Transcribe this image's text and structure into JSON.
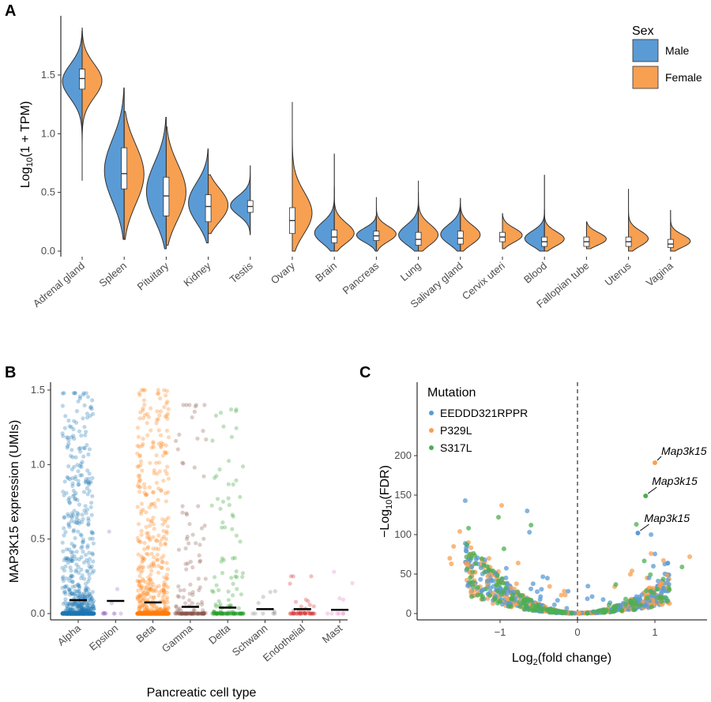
{
  "panels": {
    "a": "A",
    "b": "B",
    "c": "C"
  },
  "chart_data": [
    {
      "type": "violin",
      "panel": "A",
      "ylabel": "Log10(1 + TPM)",
      "ylabel_parts": {
        "pre": "Log",
        "sub": "10",
        "post": "(1 + TPM)"
      },
      "ylim": [
        0,
        1.9
      ],
      "yticks": [
        0.0,
        0.5,
        1.0,
        1.5
      ],
      "ytick_labels": [
        "0.0",
        "0.5",
        "1.0",
        "1.5"
      ],
      "legend": {
        "title": "Sex",
        "entries": [
          {
            "name": "Male",
            "color": "#5B9BD5"
          },
          {
            "name": "Female",
            "color": "#F7A052"
          }
        ]
      },
      "categories": [
        {
          "name": "Adrenal gland",
          "male": {
            "min": 0.6,
            "max": 1.88,
            "median": 1.47,
            "q1": 1.38,
            "q3": 1.55
          },
          "female": {
            "min": 0.72,
            "max": 1.9,
            "median": 1.47,
            "q1": 1.38,
            "q3": 1.55
          }
        },
        {
          "name": "Spleen",
          "male": {
            "min": 0.1,
            "max": 1.39,
            "median": 0.66,
            "q1": 0.53,
            "q3": 0.88
          },
          "female": {
            "min": 0.1,
            "max": 1.19,
            "median": 0.66,
            "q1": 0.53,
            "q3": 0.88
          }
        },
        {
          "name": "Pituitary",
          "male": {
            "min": 0.02,
            "max": 1.14,
            "median": 0.47,
            "q1": 0.3,
            "q3": 0.63
          },
          "female": {
            "min": 0.05,
            "max": 1.06,
            "median": 0.47,
            "q1": 0.3,
            "q3": 0.63
          }
        },
        {
          "name": "Kidney",
          "male": {
            "min": 0.07,
            "max": 0.87,
            "median": 0.38,
            "q1": 0.25,
            "q3": 0.48
          },
          "female": {
            "min": 0.15,
            "max": 0.65,
            "median": 0.38,
            "q1": 0.25,
            "q3": 0.48
          }
        },
        {
          "name": "Testis",
          "male": {
            "min": 0.14,
            "max": 0.73,
            "median": 0.38,
            "q1": 0.33,
            "q3": 0.43
          },
          "female": null
        },
        {
          "name": "Ovary",
          "male": null,
          "female": {
            "min": 0.0,
            "max": 1.27,
            "median": 0.26,
            "q1": 0.15,
            "q3": 0.37
          }
        },
        {
          "name": "Brain",
          "male": {
            "min": 0.0,
            "max": 0.83,
            "median": 0.12,
            "q1": 0.07,
            "q3": 0.18
          },
          "female": {
            "min": 0.0,
            "max": 0.55,
            "median": 0.12,
            "q1": 0.07,
            "q3": 0.18
          }
        },
        {
          "name": "Pancreas",
          "male": {
            "min": 0.0,
            "max": 0.3,
            "median": 0.13,
            "q1": 0.09,
            "q3": 0.17
          },
          "female": {
            "min": 0.0,
            "max": 0.46,
            "median": 0.13,
            "q1": 0.09,
            "q3": 0.17
          }
        },
        {
          "name": "Lung",
          "male": {
            "min": 0.0,
            "max": 0.5,
            "median": 0.1,
            "q1": 0.05,
            "q3": 0.16
          },
          "female": {
            "min": 0.0,
            "max": 0.6,
            "median": 0.1,
            "q1": 0.05,
            "q3": 0.16
          }
        },
        {
          "name": "Salivary gland",
          "male": {
            "min": 0.0,
            "max": 0.45,
            "median": 0.11,
            "q1": 0.06,
            "q3": 0.17
          },
          "female": {
            "min": 0.0,
            "max": 0.4,
            "median": 0.11,
            "q1": 0.06,
            "q3": 0.17
          }
        },
        {
          "name": "Cervix uteri",
          "male": null,
          "female": {
            "min": 0.02,
            "max": 0.32,
            "median": 0.12,
            "q1": 0.08,
            "q3": 0.16
          }
        },
        {
          "name": "Blood",
          "male": {
            "min": 0.0,
            "max": 0.65,
            "median": 0.08,
            "q1": 0.04,
            "q3": 0.12
          },
          "female": {
            "min": 0.0,
            "max": 0.35,
            "median": 0.08,
            "q1": 0.04,
            "q3": 0.12
          }
        },
        {
          "name": "Fallopian tube",
          "male": null,
          "female": {
            "min": 0.02,
            "max": 0.25,
            "median": 0.08,
            "q1": 0.04,
            "q3": 0.12
          }
        },
        {
          "name": "Uterus",
          "male": null,
          "female": {
            "min": 0.0,
            "max": 0.53,
            "median": 0.08,
            "q1": 0.04,
            "q3": 0.12
          }
        },
        {
          "name": "Vagina",
          "male": null,
          "female": {
            "min": 0.0,
            "max": 0.35,
            "median": 0.06,
            "q1": 0.03,
            "q3": 0.1
          }
        }
      ]
    },
    {
      "type": "scatter",
      "panel": "B",
      "xlabel": "Pancreatic cell type",
      "ylabel": "MAP3K15 expression (UMIs)",
      "ylim": [
        0,
        1.5
      ],
      "yticks": [
        0.0,
        0.5,
        1.0,
        1.5
      ],
      "ytick_labels": [
        "0.0",
        "0.5",
        "1.0",
        "1.5"
      ],
      "categories": [
        {
          "name": "Alpha",
          "color": "#1F77B4",
          "mean": 0.09,
          "n_points": 900,
          "max": 1.48
        },
        {
          "name": "Epsilon",
          "color": "#9467BD",
          "mean": 0.085,
          "n_points": 12,
          "max": 0.55
        },
        {
          "name": "Beta",
          "color": "#FF7F0E",
          "mean": 0.075,
          "n_points": 800,
          "max": 1.5
        },
        {
          "name": "Gamma",
          "color": "#8C564B",
          "mean": 0.045,
          "n_points": 150,
          "max": 1.4
        },
        {
          "name": "Delta",
          "color": "#2CA02C",
          "mean": 0.04,
          "n_points": 150,
          "max": 1.37
        },
        {
          "name": "Schwann",
          "color": "#7F7F7F",
          "mean": 0.03,
          "n_points": 10,
          "max": 0.15
        },
        {
          "name": "Endothelial",
          "color": "#D62728",
          "mean": 0.03,
          "n_points": 45,
          "max": 0.25
        },
        {
          "name": "Mast",
          "color": "#E377C2",
          "mean": 0.025,
          "n_points": 10,
          "max": 0.28
        }
      ]
    },
    {
      "type": "scatter",
      "panel": "C",
      "xlabel": "Log2(fold change)",
      "xlabel_parts": {
        "pre": "Log",
        "sub": "2",
        "post": "(fold change)"
      },
      "ylabel": "-Log10(FDR)",
      "ylabel_parts": {
        "pre": "−Log",
        "sub": "10",
        "post": "(FDR)"
      },
      "xlim": [
        -1.95,
        1.55
      ],
      "ylim": [
        -5,
        210
      ],
      "xticks": [
        -1,
        0,
        1
      ],
      "xtick_labels": [
        "−1",
        "0",
        "1"
      ],
      "yticks": [
        0,
        50,
        100,
        150,
        200
      ],
      "ytick_labels": [
        "0",
        "50",
        "100",
        "150",
        "200"
      ],
      "vline": 0,
      "legend": {
        "title": "Mutation",
        "entries": [
          {
            "name": "EEDDD321RPPR",
            "color": "#5B9BD5"
          },
          {
            "name": "P329L",
            "color": "#F7A052"
          },
          {
            "name": "S317L",
            "color": "#4CAF50"
          }
        ]
      },
      "highlighted": [
        {
          "label": "Map3k15",
          "x": 1.0,
          "y": 191,
          "series": "P329L"
        },
        {
          "label": "Map3k15",
          "x": 0.88,
          "y": 149,
          "series": "S317L"
        },
        {
          "label": "Map3k15",
          "x": 0.78,
          "y": 102,
          "series": "EEDDD321RPPR"
        }
      ],
      "labeled_points": [
        {
          "x": -1.45,
          "y": 143,
          "series": "EEDDD321RPPR"
        },
        {
          "x": -0.98,
          "y": 137,
          "series": "P329L"
        },
        {
          "x": -0.65,
          "y": 130,
          "series": "EEDDD321RPPR"
        },
        {
          "x": -1.02,
          "y": 122,
          "series": "S317L"
        },
        {
          "x": -0.6,
          "y": 112,
          "series": "S317L"
        },
        {
          "x": -1.52,
          "y": 104,
          "series": "P329L"
        },
        {
          "x": -0.62,
          "y": 103,
          "series": "EEDDD321RPPR"
        },
        {
          "x": -1.6,
          "y": 85,
          "series": "P329L"
        },
        {
          "x": -0.95,
          "y": 82,
          "series": "S317L"
        },
        {
          "x": -1.65,
          "y": 70,
          "series": "P329L"
        },
        {
          "x": -1.63,
          "y": 63,
          "series": "P329L"
        },
        {
          "x": 0.95,
          "y": 76,
          "series": "P329L"
        },
        {
          "x": 1.45,
          "y": 72,
          "series": "P329L"
        },
        {
          "x": 1.35,
          "y": 59,
          "series": "S317L"
        },
        {
          "x": 0.98,
          "y": 60,
          "series": "EEDDD321RPPR"
        },
        {
          "x": 1.08,
          "y": 38,
          "series": "P329L"
        },
        {
          "x": 0.76,
          "y": 113,
          "series": "S317L"
        },
        {
          "x": 0.95,
          "y": 100,
          "series": "EEDDD321RPPR"
        }
      ]
    }
  ]
}
